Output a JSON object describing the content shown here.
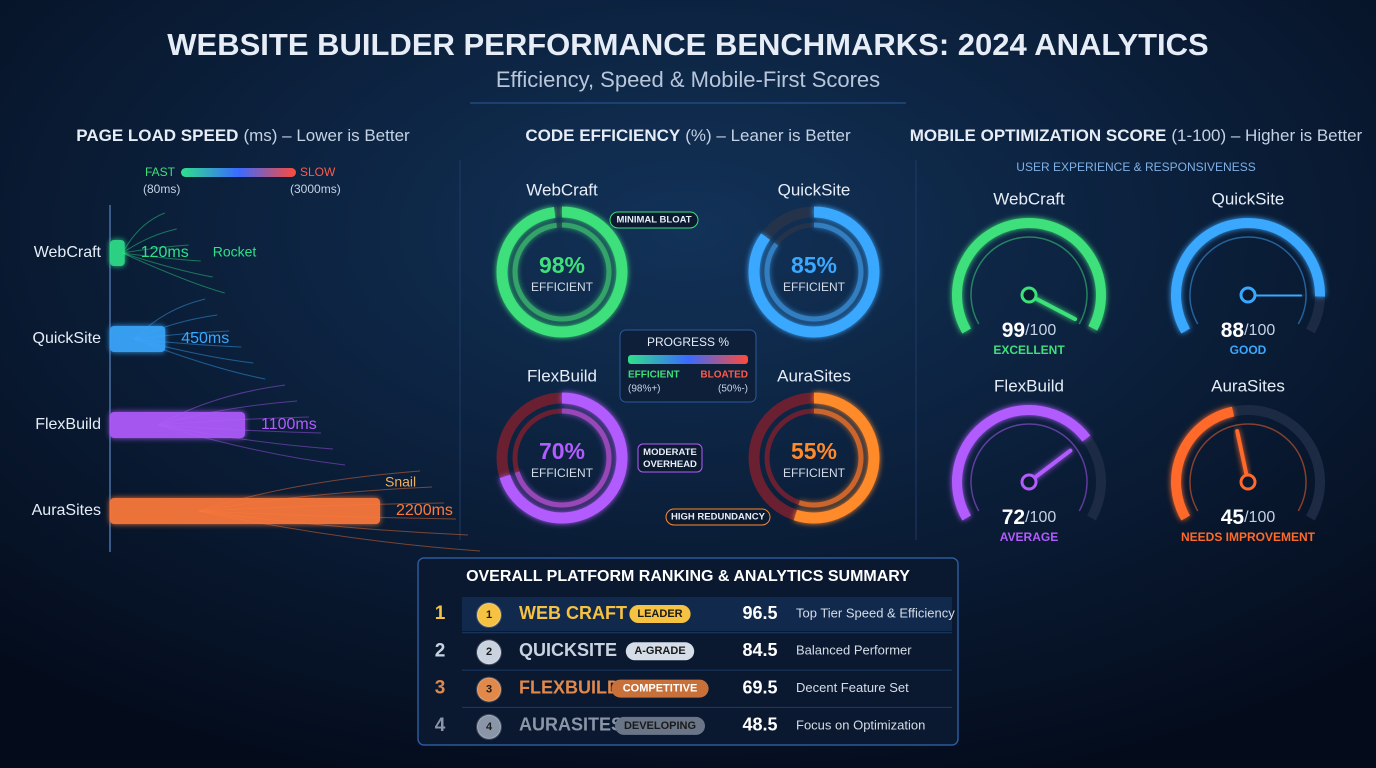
{
  "title": "WEBSITE BUILDER PERFORMANCE BENCHMARKS: 2024 ANALYTICS",
  "subtitle": "Efficiency, Speed & Mobile-First Scores",
  "chart_data": [
    {
      "type": "hbar",
      "title": "PAGE LOAD SPEED",
      "title_note": "(ms) – Lower is Better",
      "categories": [
        "WebCraft",
        "QuickSite",
        "FlexBuild",
        "AuraSites"
      ],
      "values": [
        120,
        450,
        1100,
        2200
      ],
      "value_labels": [
        "120ms",
        "450ms",
        "1100ms",
        "2200ms"
      ],
      "colors": [
        "#2fe08a",
        "#3aa8ff",
        "#b25cff",
        "#ff7a3a"
      ],
      "annotations": [
        "Rocket",
        null,
        null,
        "Snail"
      ],
      "legend": {
        "fast": "FAST",
        "slow": "SLOW",
        "min": {
          "value": 80,
          "label": "(80ms)"
        },
        "max": {
          "value": 3000,
          "label": "(3000ms)"
        }
      }
    },
    {
      "type": "donut",
      "title": "CODE EFFICIENCY",
      "title_note": "(%) – Leaner is Better",
      "categories": [
        "WebCraft",
        "QuickSite",
        "FlexBuild",
        "AuraSites"
      ],
      "values": [
        98,
        85,
        70,
        55
      ],
      "value_labels": [
        "98%",
        "85%",
        "70%",
        "55%"
      ],
      "value_caption": "EFFICIENT",
      "ylim": [
        0,
        100
      ],
      "colors": [
        "#3ee07a",
        "#3aa8ff",
        "#b25cff",
        "#ff8a2a"
      ],
      "annotations": [
        "MINIMAL BLOAT",
        null,
        "MODERATE OVERHEAD",
        "HIGH REDUNDANCY"
      ],
      "legend": {
        "title": "PROGRESS %",
        "low": "EFFICIENT",
        "high": "BLOATED",
        "low_value": {
          "value": 98,
          "label": "(98%+)"
        },
        "high_value": {
          "value": 50,
          "label": "(50%-)"
        }
      }
    },
    {
      "type": "gauge",
      "title": "MOBILE OPTIMIZATION SCORE",
      "title_note": "(1-100) – Higher is Better",
      "subtitle": "USER EXPERIENCE & RESPONSIVENESS",
      "categories": [
        "WebCraft",
        "QuickSite",
        "FlexBuild",
        "AuraSites"
      ],
      "values": [
        99,
        88,
        72,
        45
      ],
      "ylim": [
        0,
        100
      ],
      "score_suffix": "/100",
      "ratings": [
        "EXCELLENT",
        "GOOD",
        "AVERAGE",
        "NEEDS IMPROVEMENT"
      ],
      "colors": [
        "#3ee07a",
        "#3aa8ff",
        "#b25cff",
        "#ff6a2a"
      ]
    }
  ],
  "ranking": {
    "title": "OVERALL PLATFORM RANKING & ANALYTICS SUMMARY",
    "rows": [
      [
        1,
        "WEB CRAFT",
        "LEADER",
        96.5,
        "Top Tier Speed & Efficiency"
      ],
      [
        2,
        "QUICKSITE",
        "A-GRADE",
        84.5,
        "Balanced Performer"
      ],
      [
        3,
        "FLEXBUILD",
        "COMPETITIVE",
        69.5,
        "Decent Feature Set"
      ],
      [
        4,
        "AURASITES",
        "DEVELOPING",
        48.5,
        "Focus on Optimization"
      ]
    ],
    "row_colors": [
      "#f5c242",
      "#c9d3e0",
      "#e0894a",
      "#8a96a8"
    ],
    "badge_colors": [
      "#f5c242",
      "#d5dde8",
      "#c8703a",
      "#6a7688"
    ]
  }
}
